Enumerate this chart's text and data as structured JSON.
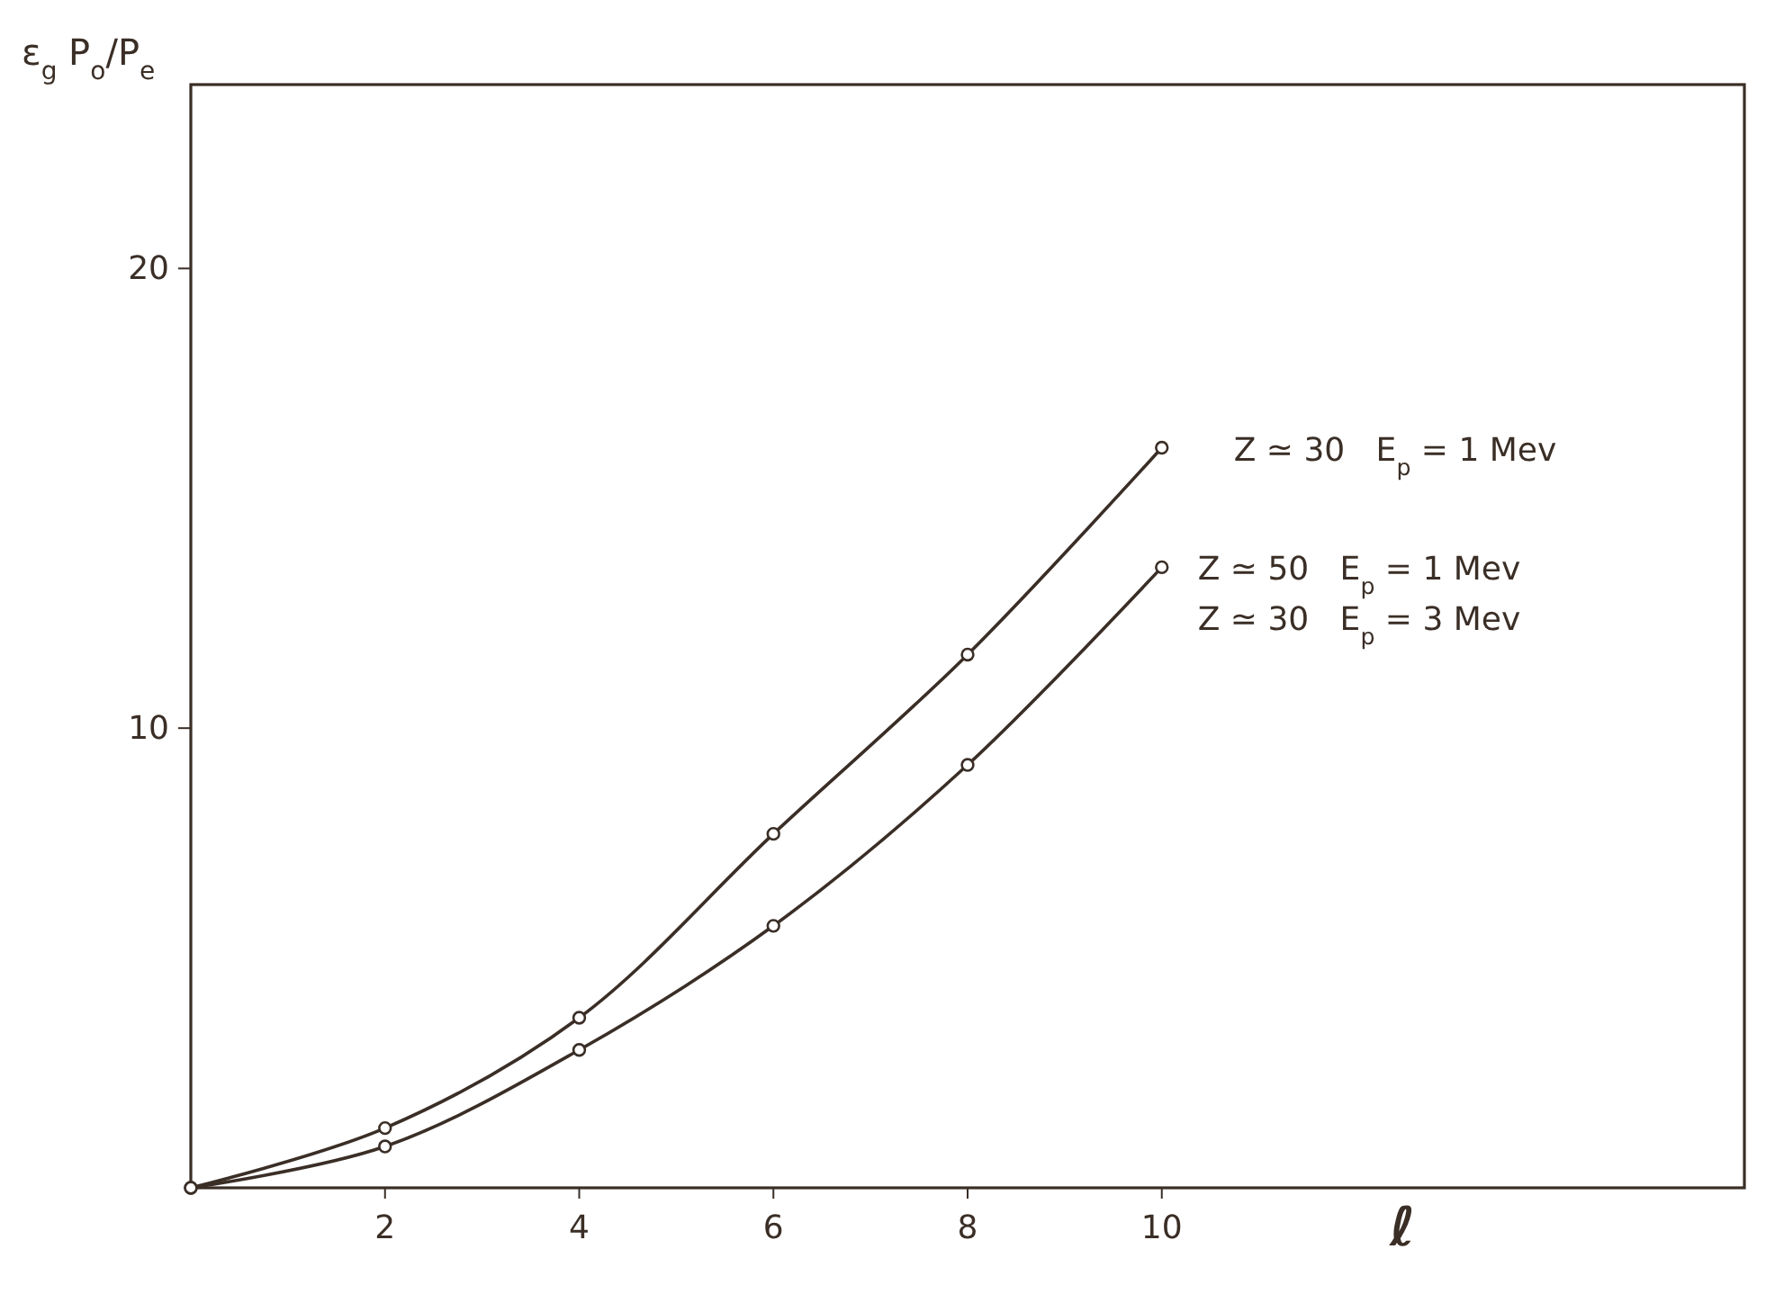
{
  "chart_data": {
    "type": "line",
    "xlabel": "ℓ",
    "ylabel": "ε$_{g}$ P$_{o}$/P$_{e}$",
    "xlim": [
      0,
      16
    ],
    "ylim": [
      0,
      24
    ],
    "xticks": [
      2,
      4,
      6,
      8,
      10
    ],
    "yticks": [
      10,
      20
    ],
    "grid": false,
    "marker": "circle",
    "line_style": "solid",
    "series": [
      {
        "name": "Z ≃ 30   E$_{p}$ = 1 Mev",
        "color": "#3a2e26",
        "x": [
          0,
          2,
          4,
          6,
          8,
          10
        ],
        "values": [
          0,
          1.3,
          3.7,
          7.7,
          11.6,
          16.1
        ]
      },
      {
        "name": "Z ≃ 50   E$_{p}$ = 1 Mev\nZ ≃ 30   E$_{p}$ = 3 Mev",
        "color": "#3a2e26",
        "x": [
          0,
          2,
          4,
          6,
          8,
          10
        ],
        "values": [
          0,
          0.9,
          3.0,
          5.7,
          9.2,
          13.5
        ]
      }
    ]
  }
}
